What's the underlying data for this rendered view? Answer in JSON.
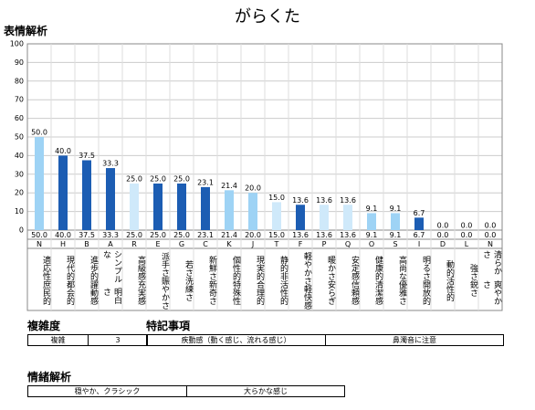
{
  "title": "がらくた",
  "chart_data": {
    "type": "bar",
    "title": "表情解析",
    "categories": [
      "N",
      "H",
      "B",
      "A",
      "R",
      "E",
      "G",
      "C",
      "K",
      "J",
      "T",
      "F",
      "P",
      "Q",
      "O",
      "S",
      "I",
      "D",
      "L",
      "N"
    ],
    "category_labels": [
      [
        "適応性",
        "庶民的"
      ],
      [
        "現代的",
        "都会的"
      ],
      [
        "進歩的",
        "躍動感"
      ],
      [
        "シンプルな",
        "明白さ"
      ],
      [
        "高級感",
        "充実感"
      ],
      [
        "派手さ",
        "賑やかさ"
      ],
      [
        "若さ",
        "洗練さ"
      ],
      [
        "新鮮さ",
        "新奇さ"
      ],
      [
        "個性的",
        "特殊性"
      ],
      [
        "現実的",
        "合理的"
      ],
      [
        "静的",
        "非活性的"
      ],
      [
        "軽やかさ",
        "軽快感"
      ],
      [
        "暖かさ",
        "安らぎ"
      ],
      [
        "安定感",
        "信頼感"
      ],
      [
        "健康的",
        "清潔感"
      ],
      [
        "高尚な",
        "優雅さ"
      ],
      [
        "明るさ",
        "開放的"
      ],
      [
        "動的",
        "活性的"
      ],
      [
        "強さ",
        "鋭さ"
      ],
      [
        "清らかさ",
        "爽やかさ"
      ]
    ],
    "values": [
      50,
      40,
      37.5,
      33.3,
      25,
      25,
      25,
      23.1,
      21.4,
      20,
      15,
      13.6,
      13.6,
      13.6,
      9.1,
      9.1,
      6.7,
      0,
      0,
      0
    ],
    "value_labels": [
      "50.0",
      "40.0",
      "37.5",
      "33.3",
      "25.0",
      "25.0",
      "25.0",
      "23.1",
      "21.4",
      "20.0",
      "15.0",
      "13.6",
      "13.6",
      "13.6",
      "9.1",
      "9.1",
      "6.7",
      "0.0",
      "0.0",
      "0.0"
    ],
    "colors": [
      "#9ed3f5",
      "#1c5db3",
      "#1c5db3",
      "#1c5db3",
      "#cfe9fa",
      "#1c5db3",
      "#1c5db3",
      "#1c5db3",
      "#9ed3f5",
      "#9ed3f5",
      "#cfe9fa",
      "#1c5db3",
      "#cfe9fa",
      "#cfe9fa",
      "#9ed3f5",
      "#9ed3f5",
      "#1c5db3",
      "#1c5db3",
      "#1c5db3",
      "#1c5db3"
    ],
    "ylim": [
      0,
      100
    ],
    "yticks": [
      0,
      10,
      20,
      30,
      40,
      50,
      60,
      70,
      80,
      90,
      100
    ],
    "grid": true
  },
  "complexity": {
    "title": "複雑度",
    "cells": [
      "複雑",
      "3"
    ]
  },
  "notes": {
    "title": "特記事項",
    "cells": [
      "疾動感（動く感じ、流れる感じ）",
      "鼻濁音に注意"
    ]
  },
  "emotion": {
    "title": "情緒解析",
    "cells": [
      "穏やか、クラシック",
      "大らかな感じ"
    ]
  }
}
